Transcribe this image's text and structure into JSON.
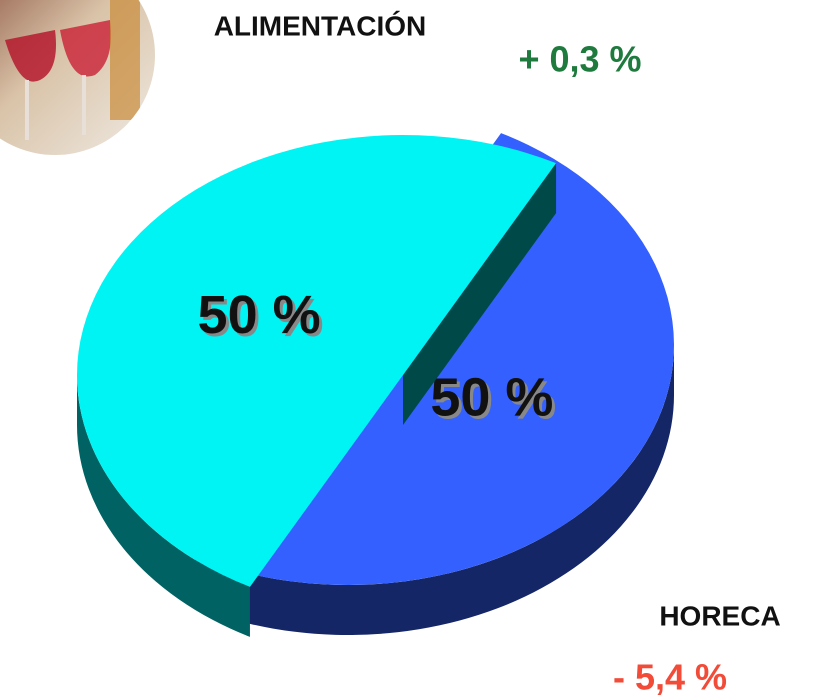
{
  "chart_data": {
    "type": "pie",
    "categories": [
      "ALIMENTACIÓN",
      "HORECA"
    ],
    "values": [
      50,
      50
    ],
    "value_labels": [
      "50 %",
      "50 %"
    ],
    "colors": [
      "#3360ff",
      "#00f4f4"
    ],
    "changes": [
      {
        "text": "+ 0,3 %",
        "color": "#1f7a3e"
      },
      {
        "text": "- 5,4 %",
        "color": "#f24b38"
      }
    ]
  }
}
